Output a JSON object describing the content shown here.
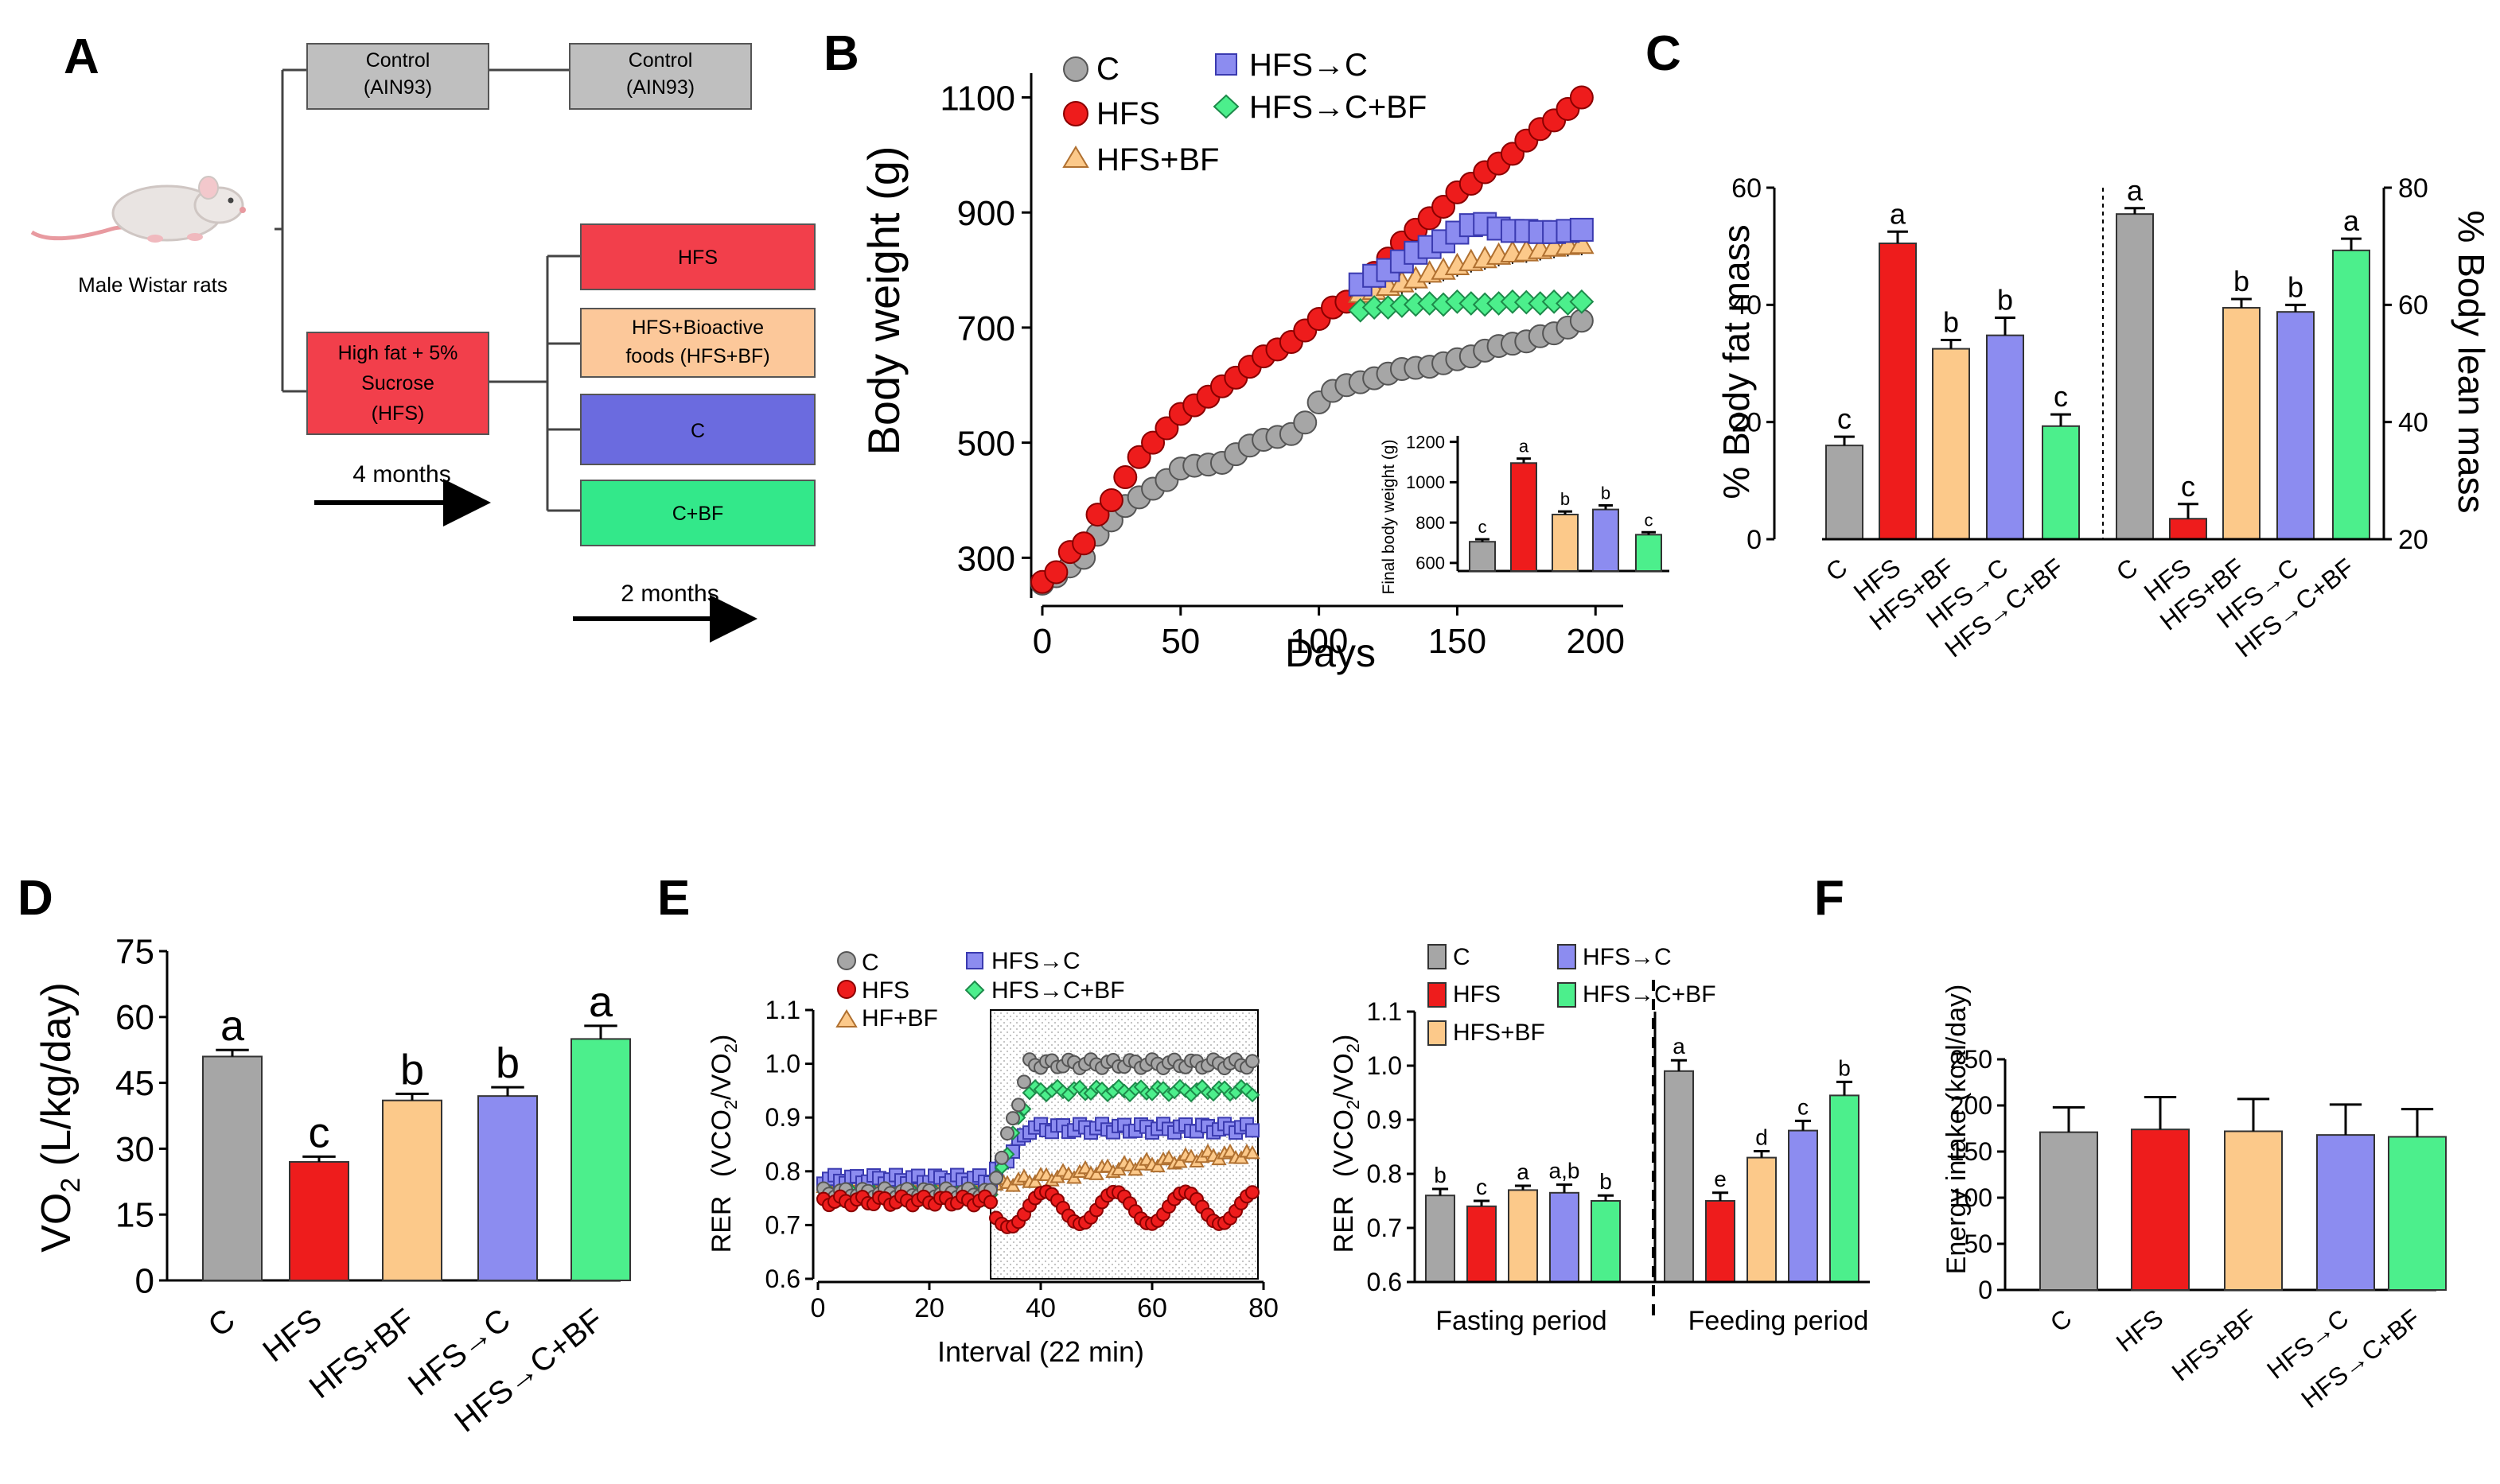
{
  "colors": {
    "c": "#a6a6a6",
    "hfs": "#ee1c1c",
    "hfs_bf": "#fcc98a",
    "hfs_c": "#8c8cf0",
    "hfs_c_bf": "#4cef8c",
    "scheme_control": "#bfbfbf",
    "scheme_hfs": "#f23f4b",
    "scheme_hfsbf": "#fcc89a",
    "scheme_c": "#6b6bdf",
    "scheme_cbf": "#33e88a"
  },
  "panels": {
    "A": "A",
    "B": "B",
    "C": "C",
    "D": "D",
    "E": "E",
    "F": "F"
  },
  "scheme": {
    "control_1": [
      "Control",
      "(AIN93)"
    ],
    "control_2": [
      "Control",
      "(AIN93)"
    ],
    "rat_label": "Male Wistar rats",
    "hfs_diet": [
      "High fat + 5%",
      "Sucrose",
      "(HFS)"
    ],
    "box_hfs": [
      "HFS"
    ],
    "box_hfsbf": [
      "HFS+Bioactive",
      "foods (HFS+BF)"
    ],
    "box_c": [
      "C"
    ],
    "box_cbf": [
      "C+BF"
    ],
    "arrow_1": "4 months",
    "arrow_2": "2 months"
  },
  "chart_data": [
    {
      "id": "B",
      "type": "line",
      "xlabel": "Days",
      "ylabel": "Body weight (g)",
      "xlim": [
        0,
        210
      ],
      "ylim": [
        230,
        1120
      ],
      "xticks": [
        0,
        50,
        100,
        150,
        200
      ],
      "yticks": [
        300,
        500,
        700,
        900,
        1100
      ],
      "legend": [
        "C",
        "HFS",
        "HFS+BF",
        "HFS→C",
        "HFS→C+BF"
      ],
      "series": [
        {
          "name": "C",
          "x": [
            0,
            5,
            10,
            15,
            20,
            25,
            30,
            35,
            40,
            45,
            50,
            55,
            60,
            65,
            70,
            75,
            80,
            85,
            90,
            95,
            100,
            105,
            110,
            115,
            120,
            125,
            130,
            135,
            140,
            145,
            150,
            155,
            160,
            165,
            170,
            175,
            180,
            185,
            190,
            195
          ],
          "y": [
            255,
            268,
            285,
            300,
            340,
            365,
            390,
            405,
            420,
            435,
            455,
            460,
            462,
            465,
            480,
            495,
            505,
            510,
            515,
            535,
            570,
            590,
            600,
            605,
            612,
            620,
            628,
            630,
            632,
            638,
            645,
            650,
            660,
            668,
            672,
            676,
            685,
            690,
            700,
            712
          ]
        },
        {
          "name": "HFS",
          "x": [
            0,
            5,
            10,
            15,
            20,
            25,
            30,
            35,
            40,
            45,
            50,
            55,
            60,
            65,
            70,
            75,
            80,
            85,
            90,
            95,
            100,
            105,
            110,
            115,
            120,
            125,
            130,
            135,
            140,
            145,
            150,
            155,
            160,
            165,
            170,
            175,
            180,
            185,
            190,
            195
          ],
          "y": [
            258,
            275,
            310,
            325,
            375,
            400,
            440,
            475,
            500,
            525,
            550,
            565,
            580,
            598,
            613,
            632,
            650,
            662,
            675,
            695,
            715,
            735,
            745,
            765,
            795,
            820,
            848,
            870,
            890,
            910,
            935,
            950,
            970,
            985,
            1002,
            1025,
            1045,
            1060,
            1080,
            1100
          ]
        },
        {
          "name": "HFS+BF",
          "x": [
            115,
            120,
            125,
            130,
            135,
            140,
            145,
            150,
            155,
            160,
            165,
            170,
            175,
            180,
            185,
            190,
            195
          ],
          "y": [
            760,
            765,
            772,
            778,
            785,
            795,
            800,
            808,
            815,
            820,
            826,
            830,
            832,
            836,
            840,
            843,
            845
          ]
        },
        {
          "name": "HFS→C",
          "x": [
            115,
            120,
            125,
            130,
            135,
            140,
            145,
            150,
            155,
            160,
            165,
            170,
            175,
            180,
            185,
            190,
            195
          ],
          "y": [
            775,
            790,
            800,
            815,
            830,
            840,
            850,
            865,
            878,
            880,
            872,
            868,
            868,
            866,
            866,
            868,
            870
          ]
        },
        {
          "name": "HFS→C+BF",
          "x": [
            115,
            120,
            125,
            130,
            135,
            140,
            145,
            150,
            155,
            160,
            165,
            170,
            175,
            180,
            185,
            190,
            195
          ],
          "y": [
            730,
            735,
            735,
            738,
            740,
            742,
            740,
            745,
            742,
            740,
            742,
            745,
            744,
            742,
            745,
            742,
            745
          ]
        }
      ],
      "inset": {
        "type": "bar",
        "ylabel": "Final body weight (g)",
        "categories": [
          "C",
          "HFS",
          "HFS+BF",
          "HFS→C",
          "HFS→C+BF"
        ],
        "values": [
          705,
          1095,
          840,
          865,
          740
        ],
        "errors": [
          12,
          22,
          15,
          20,
          12
        ],
        "letters": [
          "c",
          "a",
          "b",
          "b",
          "c"
        ],
        "ylim": [
          560,
          1230
        ],
        "yticks": [
          600,
          800,
          1000,
          1200
        ]
      }
    },
    {
      "id": "C-fat",
      "type": "bar",
      "ylabel": "% Body fat mass",
      "ylim": [
        0,
        60
      ],
      "yticks": [
        0,
        20,
        40,
        60
      ],
      "categories": [
        "C",
        "HFS",
        "HFS+BF",
        "HFS→C",
        "HFS→C+BF"
      ],
      "values": [
        16,
        50.5,
        32.5,
        34.8,
        19.3
      ],
      "errors": [
        1.5,
        2.0,
        1.5,
        3.0,
        2.0
      ],
      "letters": [
        "c",
        "a",
        "b",
        "b",
        "c"
      ]
    },
    {
      "id": "C-lean",
      "type": "bar",
      "ylabel": "% Body lean mass",
      "ylim": [
        20,
        80
      ],
      "yticks": [
        20,
        40,
        60,
        80
      ],
      "categories": [
        "C",
        "HFS",
        "HFS+BF",
        "HFS→C",
        "HFS→C+BF"
      ],
      "values": [
        75.5,
        23.5,
        59.5,
        58.8,
        69.3
      ],
      "errors": [
        1.0,
        2.5,
        1.5,
        1.2,
        2.0
      ],
      "letters": [
        "a",
        "c",
        "b",
        "b",
        "a"
      ]
    },
    {
      "id": "D",
      "type": "bar",
      "ylabel_main": "VO",
      "ylabel_sub": "2",
      "ylabel_rest": " (L/kg/day)",
      "ylim": [
        0,
        75
      ],
      "yticks": [
        0,
        15,
        30,
        45,
        60,
        75
      ],
      "categories": [
        "C",
        "HFS",
        "HFS+BF",
        "HFS→C",
        "HFS→C+BF"
      ],
      "values": [
        51,
        27,
        41,
        42,
        55
      ],
      "errors": [
        1.5,
        1.2,
        1.5,
        2.0,
        3.0
      ],
      "letters": [
        "a",
        "c",
        "b",
        "b",
        "a"
      ]
    },
    {
      "id": "E-line",
      "type": "scatter",
      "xlabel": "Interval (22 min)",
      "ylabel": "RER",
      "ylabel2_main": "(VCO",
      "ylabel2_sub": "2",
      "ylabel2_mid": "/VO",
      "ylabel2_sub2": "2",
      "ylabel2_end": ")",
      "xlim": [
        0,
        80
      ],
      "ylim": [
        0.6,
        1.1
      ],
      "xticks": [
        0,
        20,
        40,
        60,
        80
      ],
      "yticks": [
        0.6,
        0.7,
        0.8,
        0.9,
        1.0,
        1.1
      ],
      "ytick_labels": [
        "0.6",
        "0.7",
        "0.8",
        "0.9",
        "1.0",
        "1.1"
      ],
      "legend": [
        "C",
        "HFS",
        "HF+BF",
        "HFS→C",
        "HFS→C+BF"
      ],
      "feeding_window": [
        31,
        79
      ],
      "series": [
        {
          "name": "C",
          "fast": 0.76,
          "feed": 1.0
        },
        {
          "name": "HFS",
          "fast": 0.745,
          "feed": 0.75
        },
        {
          "name": "HF+BF",
          "fast": 0.775,
          "feed": 0.83
        },
        {
          "name": "HFS→C",
          "fast": 0.785,
          "feed": 0.88
        },
        {
          "name": "HFS→C+BF",
          "fast": 0.755,
          "feed": 0.95
        }
      ]
    },
    {
      "id": "E-bar",
      "type": "bar",
      "ylabel": "RER",
      "ylabel2_main": "(VCO",
      "ylabel2_sub": "2",
      "ylabel2_mid": "/VO",
      "ylabel2_sub2": "2",
      "ylabel2_end": ")",
      "ylim": [
        0.6,
        1.1
      ],
      "yticks": [
        0.6,
        0.7,
        0.8,
        0.9,
        1.0,
        1.1
      ],
      "ytick_labels": [
        "0.6",
        "0.7",
        "0.8",
        "0.9",
        "1.0",
        "1.1"
      ],
      "categories": [
        "C",
        "HFS",
        "HFS+BF",
        "HFS→C",
        "HFS→C+BF"
      ],
      "groups": [
        "Fasting period",
        "Feeding period"
      ],
      "fasting": {
        "values": [
          0.76,
          0.74,
          0.77,
          0.765,
          0.75
        ],
        "errors": [
          0.012,
          0.01,
          0.008,
          0.015,
          0.01
        ],
        "letters": [
          "b",
          "c",
          "a",
          "a,b",
          "b"
        ]
      },
      "feeding": {
        "values": [
          0.99,
          0.75,
          0.83,
          0.88,
          0.945
        ],
        "errors": [
          0.02,
          0.015,
          0.012,
          0.018,
          0.025
        ],
        "letters": [
          "a",
          "e",
          "d",
          "c",
          "b"
        ]
      }
    },
    {
      "id": "F",
      "type": "bar",
      "ylabel": "Energy intake (kcal/day)",
      "ylim": [
        0,
        250
      ],
      "yticks": [
        0,
        50,
        100,
        150,
        200,
        250
      ],
      "categories": [
        "C",
        "HFS",
        "HFS+BF",
        "HFS→C",
        "HFS→C+BF"
      ],
      "values": [
        171,
        174,
        172,
        168,
        166
      ],
      "errors": [
        27,
        35,
        35,
        33,
        30
      ]
    }
  ]
}
